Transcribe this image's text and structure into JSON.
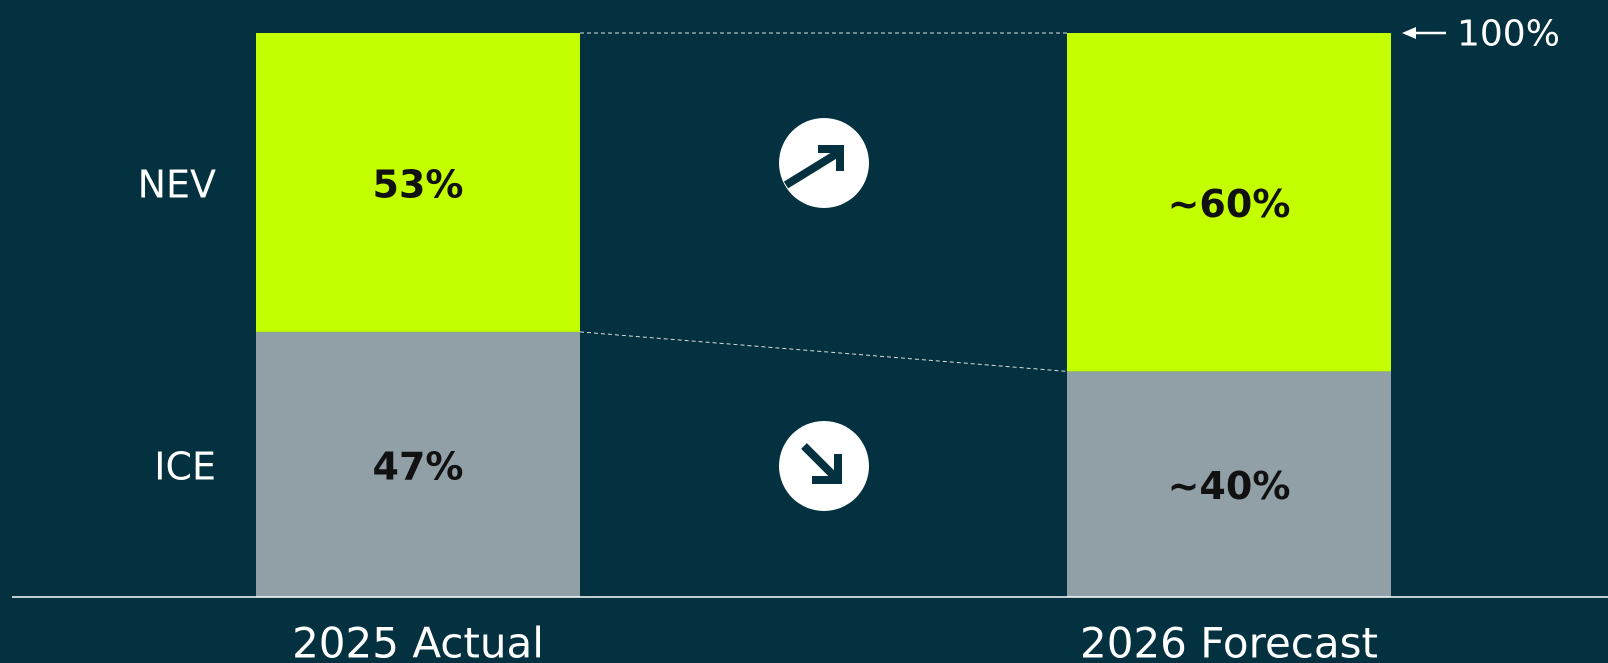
{
  "colors": {
    "background": "#03313f",
    "nev": "#c3ff00",
    "ice": "#91a0a6",
    "text_light": "#ffffff",
    "text_dark": "#111111"
  },
  "chart_data": {
    "type": "bar",
    "stacked": true,
    "categories": [
      "2025 Actual",
      "2026 Forecast"
    ],
    "series": [
      {
        "name": "ICE",
        "values": [
          47,
          40
        ],
        "labels": [
          "47%",
          "~40%"
        ]
      },
      {
        "name": "NEV",
        "values": [
          53,
          60
        ],
        "labels": [
          "53%",
          "~60%"
        ]
      }
    ],
    "reference_line": {
      "value": 100,
      "label": "100%"
    },
    "trend_icons": [
      "arrow-up-right-icon",
      "arrow-down-right-icon"
    ],
    "ylim": [
      0,
      100
    ],
    "grid": false
  }
}
